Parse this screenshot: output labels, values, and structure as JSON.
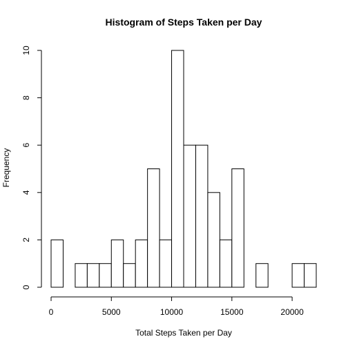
{
  "chart_data": {
    "type": "bar",
    "title": "Histogram of Steps Taken per Day",
    "xlabel": "Total Steps Taken per Day",
    "ylabel": "Frequency",
    "bin_width": 1000,
    "bin_starts": [
      0,
      1000,
      2000,
      3000,
      4000,
      5000,
      6000,
      7000,
      8000,
      9000,
      10000,
      11000,
      12000,
      13000,
      14000,
      15000,
      16000,
      17000,
      18000,
      19000,
      20000,
      21000
    ],
    "values": [
      2,
      0,
      1,
      1,
      1,
      2,
      1,
      2,
      5,
      2,
      10,
      6,
      6,
      4,
      2,
      5,
      0,
      1,
      0,
      0,
      1,
      1
    ],
    "xlim": [
      0,
      22000
    ],
    "ylim": [
      0,
      10
    ],
    "x_ticks": [
      0,
      5000,
      10000,
      15000,
      20000
    ],
    "x_tick_labels": [
      "0",
      "5000",
      "10000",
      "15000",
      "20000"
    ],
    "y_ticks": [
      0,
      2,
      4,
      6,
      8,
      10
    ],
    "y_tick_labels": [
      "0",
      "2",
      "4",
      "6",
      "8",
      "10"
    ],
    "grid": false,
    "fill_color": "#ffffff",
    "stroke_color": "#000000"
  }
}
